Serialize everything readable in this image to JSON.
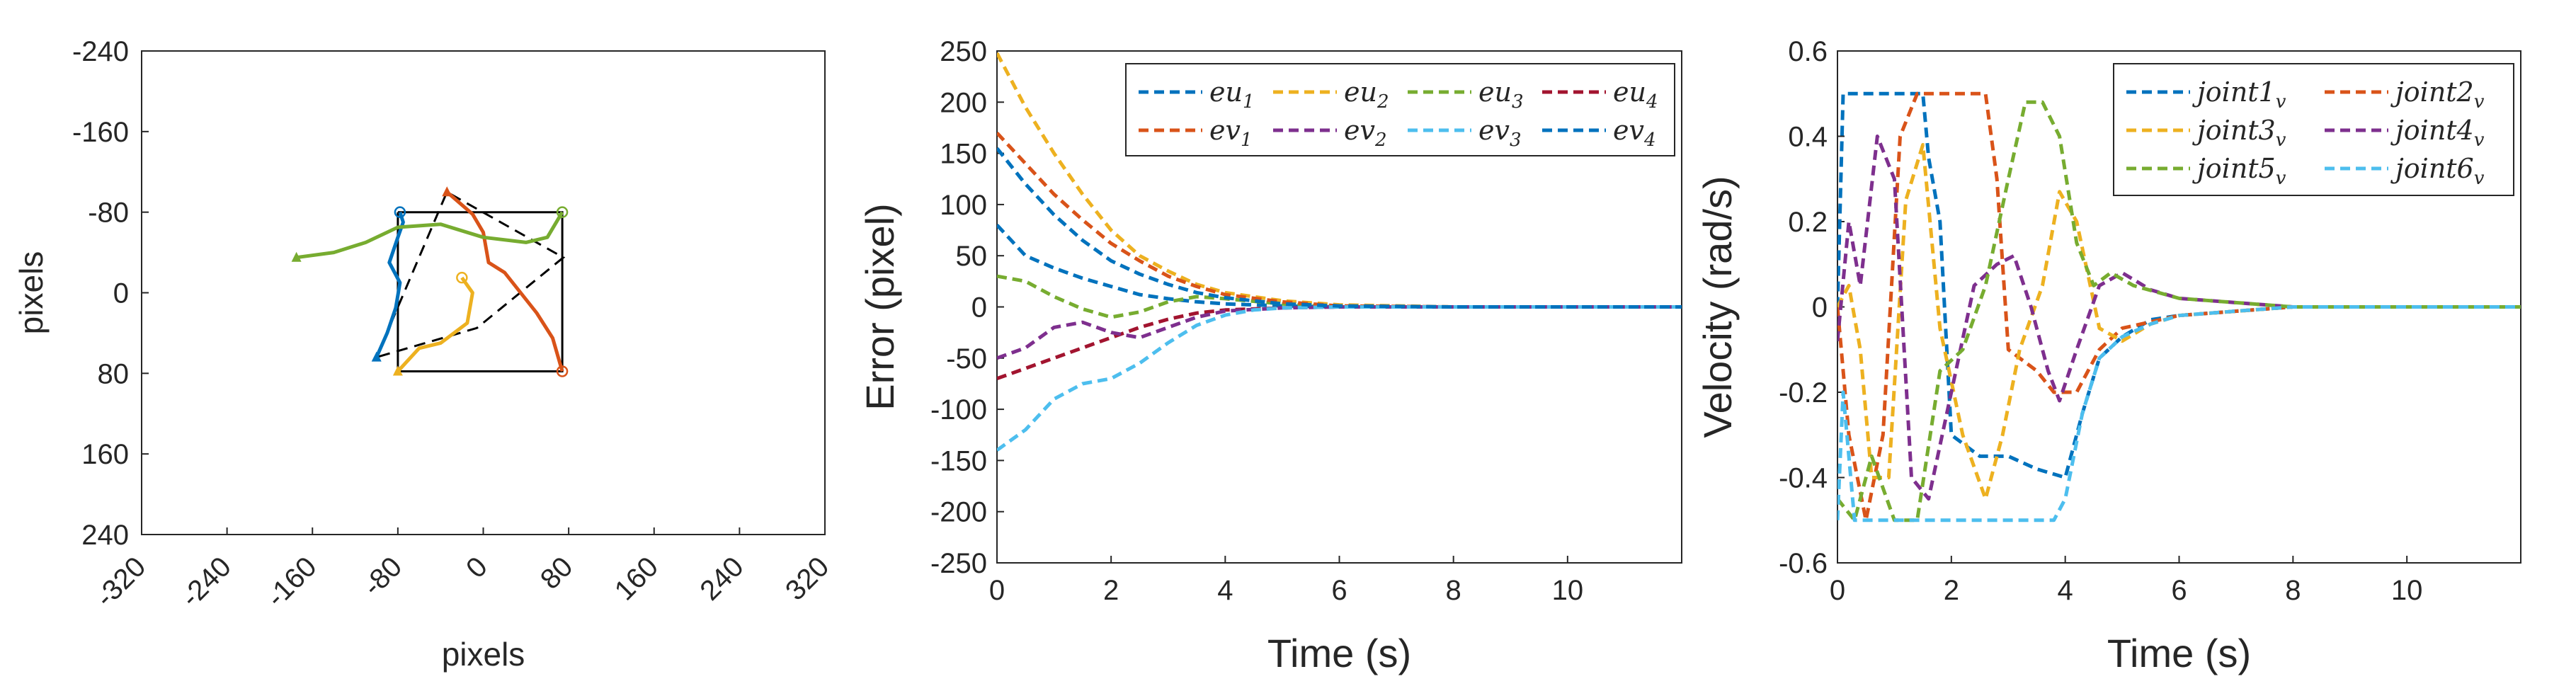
{
  "chart_data": [
    {
      "type": "line",
      "subtype": "image-feature-trajectory",
      "title": "",
      "xlabel": "pixels",
      "ylabel": "pixels",
      "xlim": [
        -320,
        320
      ],
      "ylim": [
        -240,
        240
      ],
      "y_reversed": true,
      "xticks": [
        "-320",
        "-240",
        "-160",
        "-80",
        "0",
        "80",
        "160",
        "240",
        "320"
      ],
      "yticks": [
        "-240",
        "-160",
        "-80",
        "0",
        "80",
        "160",
        "240"
      ],
      "grid": false,
      "initial_square": {
        "name": "initial",
        "style": "dashed",
        "color": "#000000",
        "x": [
          -100,
          -34,
          75,
          -6,
          -100
        ],
        "y": [
          64,
          -100,
          -35,
          35,
          64
        ]
      },
      "desired_square": {
        "name": "desired",
        "style": "solid",
        "color": "#000000",
        "x": [
          -80,
          74,
          74,
          -80,
          -80
        ],
        "y": [
          -80,
          -80,
          78,
          78,
          -80
        ]
      },
      "series": [
        {
          "color": "#0072BD",
          "x": [
            -100,
            -90,
            -82,
            -78,
            -88,
            -80,
            -75,
            -78
          ],
          "y": [
            64,
            40,
            15,
            -10,
            -30,
            -55,
            -70,
            -80
          ]
        },
        {
          "color": "#D95319",
          "x": [
            -34,
            -10,
            0,
            5,
            20,
            35,
            50,
            65,
            74
          ],
          "y": [
            -100,
            -78,
            -60,
            -30,
            -20,
            0,
            20,
            45,
            78
          ]
        },
        {
          "color": "#EDB120",
          "x": [
            -80,
            -60,
            -40,
            -15,
            -10,
            -20
          ],
          "y": [
            78,
            55,
            50,
            30,
            0,
            -15
          ]
        },
        {
          "color": "#77AC30",
          "x": [
            -175,
            -140,
            -110,
            -80,
            -40,
            0,
            40,
            60,
            74
          ],
          "y": [
            -35,
            -40,
            -50,
            -65,
            -68,
            -55,
            -50,
            -55,
            -80
          ]
        }
      ]
    },
    {
      "type": "line",
      "title": "",
      "xlabel": "Time (s)",
      "ylabel": "Error (pixel)",
      "xlim": [
        0,
        12
      ],
      "ylim": [
        -250,
        250
      ],
      "xticks": [
        "0",
        "2",
        "4",
        "6",
        "8",
        "10"
      ],
      "yticks": [
        "-250",
        "-200",
        "-150",
        "-100",
        "-50",
        "0",
        "50",
        "100",
        "150",
        "200",
        "250"
      ],
      "legend_position": "top-right",
      "series": [
        {
          "name": "eu1",
          "label": "eu",
          "sub": "1",
          "color": "#0072BD",
          "x": [
            0,
            0.5,
            1,
            1.5,
            2,
            2.5,
            3,
            3.5,
            4,
            5,
            6,
            8,
            12
          ],
          "y": [
            80,
            50,
            38,
            28,
            20,
            12,
            8,
            5,
            3,
            1,
            0,
            0,
            0
          ]
        },
        {
          "name": "eu2",
          "label": "eu",
          "sub": "2",
          "color": "#EDB120",
          "x": [
            0,
            0.5,
            1,
            1.5,
            2,
            2.5,
            3,
            3.5,
            4,
            5,
            6,
            8,
            12
          ],
          "y": [
            248,
            195,
            150,
            110,
            75,
            50,
            35,
            22,
            14,
            6,
            2,
            0,
            0
          ]
        },
        {
          "name": "eu3",
          "label": "eu",
          "sub": "3",
          "color": "#77AC30",
          "x": [
            0,
            0.5,
            1,
            1.5,
            2,
            2.5,
            3,
            3.5,
            4,
            5,
            6,
            8,
            12
          ],
          "y": [
            30,
            25,
            10,
            -2,
            -10,
            -5,
            5,
            10,
            8,
            3,
            0,
            0,
            0
          ]
        },
        {
          "name": "eu4",
          "label": "eu",
          "sub": "4",
          "color": "#A2142F",
          "x": [
            0,
            0.5,
            1,
            1.5,
            2,
            2.5,
            3,
            3.5,
            4,
            5,
            6,
            8,
            12
          ],
          "y": [
            -70,
            -60,
            -50,
            -40,
            -30,
            -20,
            -12,
            -6,
            -3,
            -1,
            0,
            0,
            0
          ]
        },
        {
          "name": "ev1",
          "label": "ev",
          "sub": "1",
          "color": "#D95319",
          "x": [
            0,
            0.5,
            1,
            1.5,
            2,
            2.5,
            3,
            3.5,
            4,
            5,
            6,
            8,
            12
          ],
          "y": [
            170,
            140,
            110,
            85,
            62,
            45,
            30,
            20,
            12,
            5,
            1,
            0,
            0
          ]
        },
        {
          "name": "ev2",
          "label": "ev",
          "sub": "2",
          "color": "#7E2F8E",
          "x": [
            0,
            0.5,
            1,
            1.5,
            2,
            2.5,
            3,
            3.5,
            4,
            5,
            6,
            8,
            12
          ],
          "y": [
            -50,
            -40,
            -20,
            -15,
            -25,
            -30,
            -20,
            -10,
            -4,
            -1,
            0,
            0,
            0
          ]
        },
        {
          "name": "ev3",
          "label": "ev",
          "sub": "3",
          "color": "#4DBEEE",
          "x": [
            0,
            0.5,
            1,
            1.5,
            2,
            2.5,
            3,
            3.5,
            4,
            4.5,
            5,
            6,
            8,
            12
          ],
          "y": [
            -140,
            -120,
            -90,
            -75,
            -70,
            -55,
            -35,
            -18,
            -8,
            -3,
            -1,
            0,
            0,
            0
          ]
        },
        {
          "name": "ev4",
          "label": "ev",
          "sub": "4",
          "color": "#0072BD",
          "x": [
            0,
            0.5,
            1,
            1.5,
            2,
            2.5,
            3,
            3.5,
            4,
            5,
            6,
            8,
            12
          ],
          "y": [
            155,
            120,
            90,
            65,
            45,
            32,
            22,
            14,
            9,
            3,
            1,
            0,
            0
          ]
        }
      ]
    },
    {
      "type": "line",
      "title": "",
      "xlabel": "Time (s)",
      "ylabel": "Velocity (rad/s)",
      "xlim": [
        0,
        12
      ],
      "ylim": [
        -0.6,
        0.6
      ],
      "xticks": [
        "0",
        "2",
        "4",
        "6",
        "8",
        "10"
      ],
      "yticks": [
        "-0.6",
        "-0.4",
        "-0.2",
        "0",
        "0.2",
        "0.4",
        "0.6"
      ],
      "legend_position": "top-right",
      "series": [
        {
          "name": "joint1v",
          "label": "joint1",
          "sub": "v",
          "color": "#0072BD",
          "x": [
            0,
            0.1,
            0.2,
            1.5,
            1.6,
            1.8,
            2,
            2.5,
            3,
            3.5,
            4,
            4.3,
            4.6,
            5,
            5.5,
            6,
            7,
            8,
            12
          ],
          "y": [
            0,
            0.5,
            0.5,
            0.5,
            0.35,
            0.2,
            -0.3,
            -0.35,
            -0.35,
            -0.38,
            -0.4,
            -0.25,
            -0.12,
            -0.07,
            -0.03,
            -0.02,
            -0.01,
            0,
            0
          ]
        },
        {
          "name": "joint2v",
          "label": "joint2",
          "sub": "v",
          "color": "#D95319",
          "x": [
            0,
            0.2,
            0.5,
            0.8,
            1.1,
            1.4,
            2.6,
            2.8,
            3,
            3.5,
            3.8,
            4.2,
            4.6,
            5,
            6,
            8,
            12
          ],
          "y": [
            0,
            -0.3,
            -0.5,
            -0.3,
            0.4,
            0.5,
            0.5,
            0.3,
            -0.1,
            -0.15,
            -0.2,
            -0.2,
            -0.1,
            -0.05,
            -0.02,
            0,
            0
          ]
        },
        {
          "name": "joint3v",
          "label": "joint3",
          "sub": "v",
          "color": "#EDB120",
          "x": [
            0,
            0.2,
            0.4,
            0.6,
            0.9,
            1.2,
            1.5,
            1.8,
            2.2,
            2.6,
            2.9,
            3.2,
            3.6,
            3.9,
            4.2,
            4.6,
            5,
            5.5,
            6,
            8,
            12
          ],
          "y": [
            0,
            0.05,
            -0.1,
            -0.4,
            -0.4,
            0.25,
            0.38,
            -0.05,
            -0.3,
            -0.45,
            -0.3,
            -0.1,
            0.05,
            0.27,
            0.2,
            -0.05,
            -0.08,
            -0.04,
            -0.02,
            0,
            0
          ]
        },
        {
          "name": "joint4v",
          "label": "joint4",
          "sub": "v",
          "color": "#7E2F8E",
          "x": [
            0,
            0.2,
            0.4,
            0.7,
            1,
            1.3,
            1.6,
            2,
            2.4,
            2.8,
            3.1,
            3.4,
            3.7,
            3.9,
            4.2,
            4.6,
            5,
            5.5,
            6,
            8,
            12
          ],
          "y": [
            -0.08,
            0.2,
            0.05,
            0.4,
            0.3,
            -0.4,
            -0.45,
            -0.2,
            0.05,
            0.1,
            0.12,
            0,
            -0.15,
            -0.22,
            -0.1,
            0.05,
            0.08,
            0.04,
            0.02,
            0,
            0
          ]
        },
        {
          "name": "joint5v",
          "label": "joint5",
          "sub": "v",
          "color": "#77AC30",
          "x": [
            0,
            0.3,
            0.6,
            1,
            1.4,
            1.8,
            2.2,
            2.6,
            3,
            3.3,
            3.6,
            3.9,
            4.2,
            4.5,
            4.8,
            5.2,
            6,
            8,
            12
          ],
          "y": [
            -0.45,
            -0.5,
            -0.35,
            -0.5,
            -0.5,
            -0.15,
            -0.1,
            0.05,
            0.3,
            0.48,
            0.48,
            0.4,
            0.15,
            0.05,
            0.08,
            0.05,
            0.02,
            0,
            0
          ]
        },
        {
          "name": "joint6v",
          "label": "joint6",
          "sub": "v",
          "color": "#4DBEEE",
          "x": [
            0,
            0.1,
            0.3,
            0.5,
            1,
            2,
            3,
            3.8,
            4,
            4.3,
            4.6,
            5,
            5.5,
            6,
            7,
            8,
            12
          ],
          "y": [
            -0.5,
            -0.2,
            -0.5,
            -0.5,
            -0.5,
            -0.5,
            -0.5,
            -0.5,
            -0.45,
            -0.25,
            -0.12,
            -0.07,
            -0.04,
            -0.02,
            -0.01,
            0,
            0
          ]
        }
      ]
    }
  ]
}
